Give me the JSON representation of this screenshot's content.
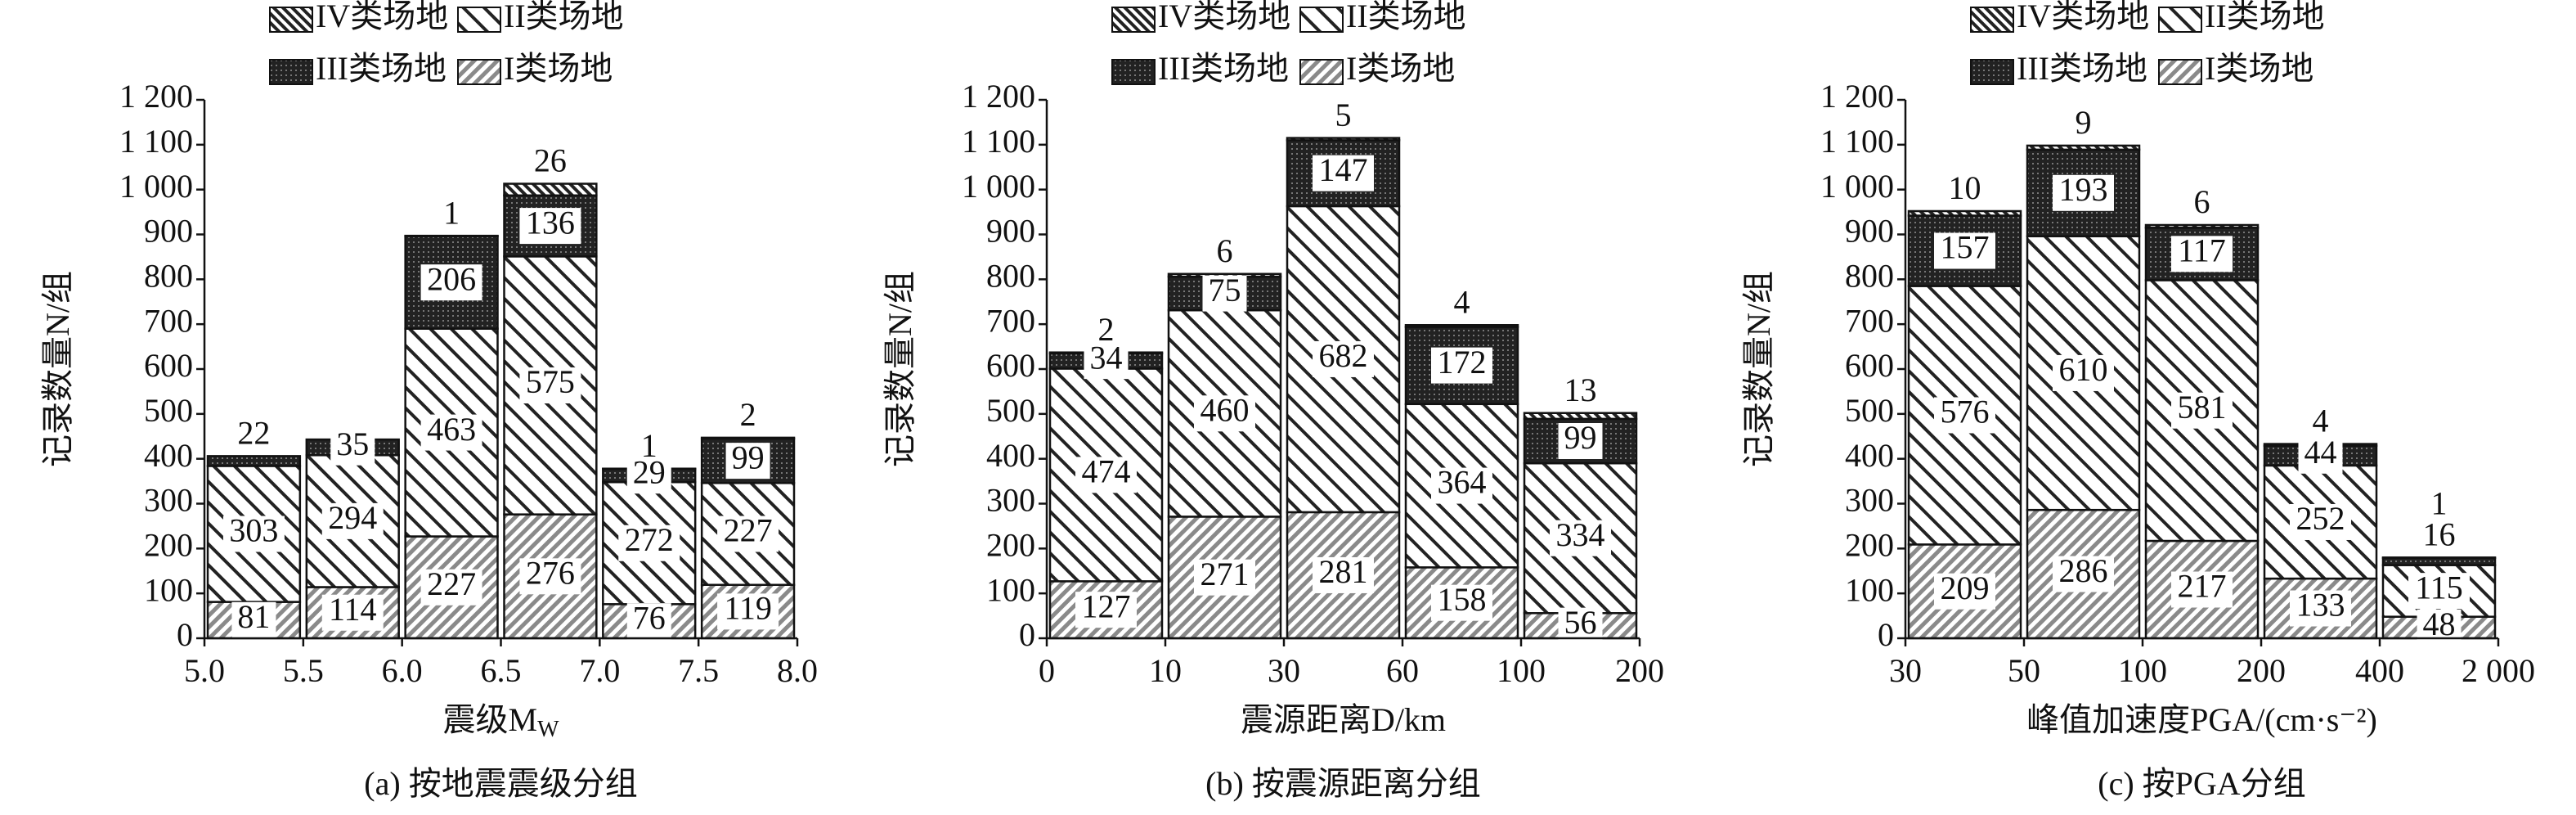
{
  "chart_data": [
    {
      "type": "bar",
      "stacked": true,
      "caption": "(a) 按地震震级分组",
      "xlabel": "震级M",
      "xlabel_sub": "W",
      "ylabel": "记录数量N/组",
      "x_edges": [
        "5.0",
        "5.5",
        "6.0",
        "6.5",
        "7.0",
        "7.5",
        "8.0"
      ],
      "ylim": [
        0,
        1200
      ],
      "yticks": [
        0,
        100,
        200,
        300,
        400,
        500,
        600,
        700,
        800,
        900,
        {
          "value": 1000,
          "label": "1 000"
        },
        {
          "value": 1100,
          "label": "1 100"
        },
        {
          "value": 1200,
          "label": "1 200"
        }
      ],
      "series": [
        {
          "name": "I类场地",
          "pattern": "back-hatch",
          "color": "#888888",
          "values": [
            81,
            114,
            227,
            276,
            76,
            119
          ]
        },
        {
          "name": "II类场地",
          "pattern": "hatch",
          "color": "#222222",
          "values": [
            303,
            294,
            463,
            575,
            272,
            227
          ]
        },
        {
          "name": "III类场地",
          "pattern": "dots",
          "color": "#222222",
          "values": [
            22,
            35,
            206,
            136,
            29,
            99
          ]
        },
        {
          "name": "IV类场地",
          "pattern": "dense-hatch",
          "color": "#222222",
          "values": [
            null,
            null,
            1,
            26,
            1,
            2
          ]
        }
      ]
    },
    {
      "type": "bar",
      "stacked": true,
      "caption": "(b) 按震源距离分组",
      "xlabel": "震源距离D/km",
      "ylabel": "记录数量N/组",
      "x_edges": [
        "0",
        "10",
        "30",
        "60",
        "100",
        "200"
      ],
      "ylim": [
        0,
        1200
      ],
      "yticks": [
        0,
        100,
        200,
        300,
        400,
        500,
        600,
        700,
        800,
        900,
        {
          "value": 1000,
          "label": "1 000"
        },
        {
          "value": 1100,
          "label": "1 100"
        },
        {
          "value": 1200,
          "label": "1 200"
        }
      ],
      "series": [
        {
          "name": "I类场地",
          "pattern": "back-hatch",
          "color": "#888888",
          "values": [
            127,
            271,
            281,
            158,
            56
          ]
        },
        {
          "name": "II类场地",
          "pattern": "hatch",
          "color": "#222222",
          "values": [
            474,
            460,
            682,
            364,
            334
          ]
        },
        {
          "name": "III类场地",
          "pattern": "dots",
          "color": "#222222",
          "values": [
            34,
            75,
            147,
            172,
            99
          ]
        },
        {
          "name": "IV类场地",
          "pattern": "dense-hatch",
          "color": "#222222",
          "values": [
            2,
            6,
            5,
            4,
            13
          ]
        }
      ]
    },
    {
      "type": "bar",
      "stacked": true,
      "caption": "(c) 按PGA分组",
      "xlabel": "峰值加速度PGA/(cm·s⁻²)",
      "ylabel": "记录数量N/组",
      "x_edges": [
        "30",
        "50",
        "100",
        "200",
        "400",
        "2 000"
      ],
      "ylim": [
        0,
        1200
      ],
      "yticks": [
        0,
        100,
        200,
        300,
        400,
        500,
        600,
        700,
        800,
        900,
        {
          "value": 1000,
          "label": "1 000"
        },
        {
          "value": 1100,
          "label": "1 100"
        },
        {
          "value": 1200,
          "label": "1 200"
        }
      ],
      "series": [
        {
          "name": "I类场地",
          "pattern": "back-hatch",
          "color": "#888888",
          "values": [
            209,
            286,
            217,
            133,
            48
          ]
        },
        {
          "name": "II类场地",
          "pattern": "hatch",
          "color": "#222222",
          "values": [
            576,
            610,
            581,
            252,
            115
          ]
        },
        {
          "name": "III类场地",
          "pattern": "dots",
          "color": "#222222",
          "values": [
            157,
            193,
            117,
            44,
            16
          ]
        },
        {
          "name": "IV类场地",
          "pattern": "dense-hatch",
          "color": "#222222",
          "values": [
            10,
            9,
            6,
            4,
            1
          ]
        }
      ]
    }
  ]
}
